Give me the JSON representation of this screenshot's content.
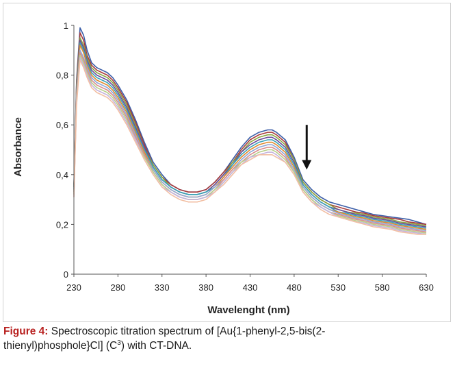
{
  "figure": {
    "caption_label": "Figure 4:",
    "caption_text": "Spectroscopic titration spectrum of [Au{1-phenyl-2,5-bis(2-\nthienyl)phosphole}Cl] (C",
    "caption_superscript": "3",
    "caption_tail": ") with CT-DNA."
  },
  "chart_data": {
    "type": "line",
    "title": "",
    "xlabel": "Wavelenght (nm)",
    "ylabel": "Absorbance",
    "xlim": [
      230,
      630
    ],
    "ylim": [
      0,
      1
    ],
    "xticks": [
      "230",
      "280",
      "330",
      "380",
      "430",
      "480",
      "530",
      "580",
      "630"
    ],
    "yticks": [
      "0",
      "0,2",
      "0,4",
      "0,6",
      "0,8",
      "1"
    ],
    "grid": false,
    "legend": "none",
    "annotation": "downward arrow near 530 nm indicating decreasing absorbance with titration",
    "annotation_arrow": {
      "x": 530,
      "y_start": 0.6,
      "y_end": 0.42
    },
    "x": [
      230,
      233,
      237,
      241,
      245,
      250,
      256,
      262,
      268,
      274,
      280,
      290,
      300,
      310,
      320,
      330,
      340,
      350,
      360,
      370,
      380,
      390,
      400,
      410,
      420,
      430,
      440,
      450,
      455,
      460,
      470,
      480,
      490,
      500,
      510,
      520,
      530,
      540,
      550,
      560,
      570,
      580,
      590,
      600,
      610,
      620,
      630
    ],
    "series": [
      {
        "color": "#3b5ea8",
        "values": [
          0.36,
          0.78,
          0.99,
          0.96,
          0.9,
          0.85,
          0.83,
          0.82,
          0.81,
          0.79,
          0.76,
          0.7,
          0.62,
          0.53,
          0.45,
          0.4,
          0.36,
          0.34,
          0.33,
          0.33,
          0.34,
          0.37,
          0.41,
          0.46,
          0.51,
          0.55,
          0.57,
          0.58,
          0.58,
          0.57,
          0.54,
          0.47,
          0.38,
          0.34,
          0.31,
          0.29,
          0.28,
          0.27,
          0.26,
          0.25,
          0.24,
          0.235,
          0.23,
          0.225,
          0.22,
          0.21,
          0.2
        ]
      },
      {
        "color": "#a83a3a",
        "values": [
          0.35,
          0.77,
          0.97,
          0.94,
          0.88,
          0.84,
          0.82,
          0.81,
          0.8,
          0.78,
          0.75,
          0.69,
          0.61,
          0.52,
          0.44,
          0.39,
          0.36,
          0.34,
          0.33,
          0.33,
          0.34,
          0.37,
          0.41,
          0.45,
          0.5,
          0.54,
          0.56,
          0.57,
          0.57,
          0.56,
          0.53,
          0.46,
          0.37,
          0.33,
          0.3,
          0.28,
          0.27,
          0.26,
          0.25,
          0.245,
          0.235,
          0.23,
          0.225,
          0.22,
          0.21,
          0.205,
          0.2
        ]
      },
      {
        "color": "#8aa640",
        "values": [
          0.35,
          0.76,
          0.95,
          0.92,
          0.87,
          0.83,
          0.81,
          0.8,
          0.79,
          0.77,
          0.74,
          0.68,
          0.6,
          0.51,
          0.44,
          0.39,
          0.35,
          0.33,
          0.32,
          0.32,
          0.33,
          0.36,
          0.4,
          0.45,
          0.49,
          0.53,
          0.55,
          0.56,
          0.56,
          0.55,
          0.52,
          0.46,
          0.37,
          0.33,
          0.3,
          0.28,
          0.26,
          0.25,
          0.245,
          0.24,
          0.23,
          0.225,
          0.22,
          0.21,
          0.205,
          0.2,
          0.195
        ]
      },
      {
        "color": "#6b4c9a",
        "values": [
          0.34,
          0.75,
          0.94,
          0.91,
          0.86,
          0.82,
          0.8,
          0.79,
          0.78,
          0.76,
          0.73,
          0.67,
          0.59,
          0.51,
          0.43,
          0.38,
          0.35,
          0.33,
          0.32,
          0.32,
          0.33,
          0.36,
          0.4,
          0.44,
          0.49,
          0.52,
          0.54,
          0.55,
          0.55,
          0.54,
          0.51,
          0.45,
          0.36,
          0.32,
          0.29,
          0.27,
          0.26,
          0.25,
          0.24,
          0.235,
          0.225,
          0.22,
          0.215,
          0.205,
          0.2,
          0.195,
          0.19
        ]
      },
      {
        "color": "#3aa3b8",
        "values": [
          0.34,
          0.74,
          0.93,
          0.9,
          0.85,
          0.81,
          0.79,
          0.78,
          0.77,
          0.75,
          0.72,
          0.66,
          0.58,
          0.5,
          0.43,
          0.38,
          0.35,
          0.33,
          0.32,
          0.32,
          0.33,
          0.35,
          0.39,
          0.44,
          0.48,
          0.51,
          0.53,
          0.54,
          0.54,
          0.53,
          0.5,
          0.44,
          0.36,
          0.32,
          0.29,
          0.27,
          0.25,
          0.245,
          0.235,
          0.23,
          0.22,
          0.215,
          0.21,
          0.2,
          0.195,
          0.19,
          0.185
        ]
      },
      {
        "color": "#e08a2e",
        "values": [
          0.33,
          0.73,
          0.92,
          0.89,
          0.84,
          0.8,
          0.78,
          0.77,
          0.76,
          0.74,
          0.71,
          0.65,
          0.57,
          0.49,
          0.42,
          0.37,
          0.34,
          0.32,
          0.31,
          0.31,
          0.32,
          0.35,
          0.39,
          0.43,
          0.47,
          0.5,
          0.52,
          0.53,
          0.53,
          0.52,
          0.49,
          0.43,
          0.35,
          0.31,
          0.28,
          0.26,
          0.25,
          0.24,
          0.23,
          0.225,
          0.215,
          0.21,
          0.205,
          0.195,
          0.19,
          0.185,
          0.18
        ]
      },
      {
        "color": "#8fa8d6",
        "values": [
          0.33,
          0.72,
          0.9,
          0.87,
          0.83,
          0.79,
          0.77,
          0.76,
          0.75,
          0.73,
          0.7,
          0.64,
          0.56,
          0.48,
          0.42,
          0.37,
          0.34,
          0.32,
          0.31,
          0.31,
          0.32,
          0.35,
          0.38,
          0.42,
          0.46,
          0.49,
          0.51,
          0.52,
          0.52,
          0.51,
          0.48,
          0.42,
          0.35,
          0.31,
          0.28,
          0.26,
          0.245,
          0.235,
          0.225,
          0.22,
          0.21,
          0.205,
          0.2,
          0.19,
          0.185,
          0.18,
          0.175
        ]
      },
      {
        "color": "#d98c8c",
        "values": [
          0.32,
          0.71,
          0.89,
          0.86,
          0.82,
          0.78,
          0.76,
          0.75,
          0.74,
          0.72,
          0.69,
          0.63,
          0.55,
          0.48,
          0.41,
          0.36,
          0.33,
          0.31,
          0.3,
          0.3,
          0.31,
          0.34,
          0.38,
          0.42,
          0.45,
          0.48,
          0.5,
          0.51,
          0.51,
          0.5,
          0.47,
          0.41,
          0.34,
          0.3,
          0.27,
          0.25,
          0.24,
          0.23,
          0.22,
          0.215,
          0.205,
          0.2,
          0.195,
          0.185,
          0.18,
          0.175,
          0.17
        ]
      },
      {
        "color": "#b8cf8a",
        "values": [
          0.32,
          0.7,
          0.88,
          0.85,
          0.81,
          0.77,
          0.75,
          0.74,
          0.73,
          0.71,
          0.68,
          0.62,
          0.54,
          0.47,
          0.41,
          0.36,
          0.33,
          0.31,
          0.3,
          0.3,
          0.31,
          0.34,
          0.37,
          0.41,
          0.45,
          0.47,
          0.49,
          0.5,
          0.5,
          0.49,
          0.46,
          0.41,
          0.34,
          0.3,
          0.27,
          0.25,
          0.235,
          0.225,
          0.215,
          0.21,
          0.2,
          0.195,
          0.19,
          0.18,
          0.175,
          0.17,
          0.165
        ]
      },
      {
        "color": "#c5b3dd",
        "values": [
          0.31,
          0.69,
          0.87,
          0.84,
          0.8,
          0.76,
          0.74,
          0.73,
          0.72,
          0.7,
          0.67,
          0.61,
          0.54,
          0.46,
          0.4,
          0.35,
          0.33,
          0.31,
          0.3,
          0.3,
          0.31,
          0.33,
          0.37,
          0.41,
          0.44,
          0.47,
          0.48,
          0.49,
          0.49,
          0.48,
          0.45,
          0.4,
          0.33,
          0.29,
          0.27,
          0.25,
          0.23,
          0.22,
          0.21,
          0.205,
          0.195,
          0.19,
          0.185,
          0.175,
          0.17,
          0.165,
          0.16
        ]
      },
      {
        "color": "#f2bfa3",
        "values": [
          0.31,
          0.68,
          0.86,
          0.83,
          0.79,
          0.75,
          0.73,
          0.72,
          0.71,
          0.69,
          0.66,
          0.6,
          0.53,
          0.46,
          0.4,
          0.35,
          0.32,
          0.3,
          0.29,
          0.29,
          0.3,
          0.33,
          0.36,
          0.4,
          0.44,
          0.46,
          0.48,
          0.48,
          0.48,
          0.47,
          0.45,
          0.4,
          0.33,
          0.29,
          0.26,
          0.24,
          0.23,
          0.22,
          0.21,
          0.2,
          0.19,
          0.185,
          0.18,
          0.17,
          0.165,
          0.16,
          0.16
        ]
      }
    ]
  }
}
